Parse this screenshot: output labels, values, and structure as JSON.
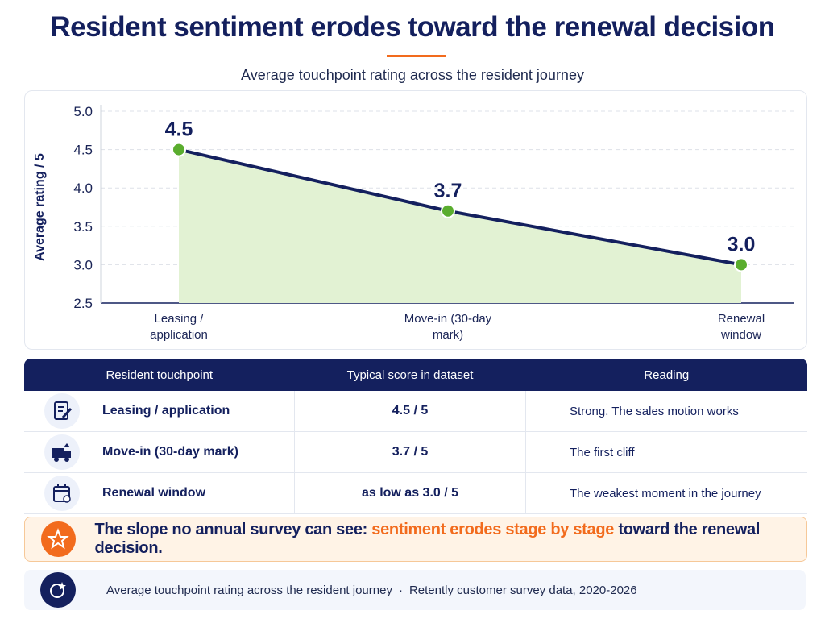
{
  "header": {
    "title": "Resident sentiment erodes toward the renewal decision",
    "subtitle": "Average touchpoint rating across the resident journey"
  },
  "chart_data": {
    "type": "line",
    "y_label": "Average rating / 5",
    "categories": [
      "Leasing / application",
      "Move-in (30-day mark)",
      "Renewal window"
    ],
    "series": [
      {
        "name": "Average touchpoint rating",
        "color": "#14205e",
        "marker_color": "#5aad2e",
        "fill": "#e2f2d3",
        "values": [
          4.5,
          3.7,
          3.0
        ],
        "value_labels": [
          "4.5",
          "3.7",
          "3.0"
        ]
      }
    ],
    "ylim": [
      2.5,
      5
    ],
    "yticks": [
      2.5,
      {
        "value": 3,
        "label": "3.0"
      },
      3.5,
      {
        "value": 4,
        "label": "4.0"
      },
      4.5,
      {
        "value": 5,
        "label": "5.0"
      }
    ],
    "grid": true
  },
  "table": {
    "columns": [
      "Resident touchpoint",
      "Typical score in dataset",
      "Reading"
    ],
    "rows": [
      [
        "Leasing / application",
        "4.5 / 5",
        "Strong. The sales motion works"
      ],
      [
        "Move-in (30-day mark)",
        "3.7 / 5",
        "The first cliff"
      ],
      [
        "Renewal window",
        "as low as 3.0 / 5",
        "The weakest moment in the journey"
      ]
    ]
  },
  "callout": {
    "lead": "The slope no annual survey can see: ",
    "highlight": "sentiment erodes stage by stage",
    "tail": " toward the renewal decision."
  },
  "footer": {
    "caption": "Average touchpoint rating across the resident journey",
    "separator": "·",
    "source": "Retently customer survey data, 2020-2026"
  }
}
